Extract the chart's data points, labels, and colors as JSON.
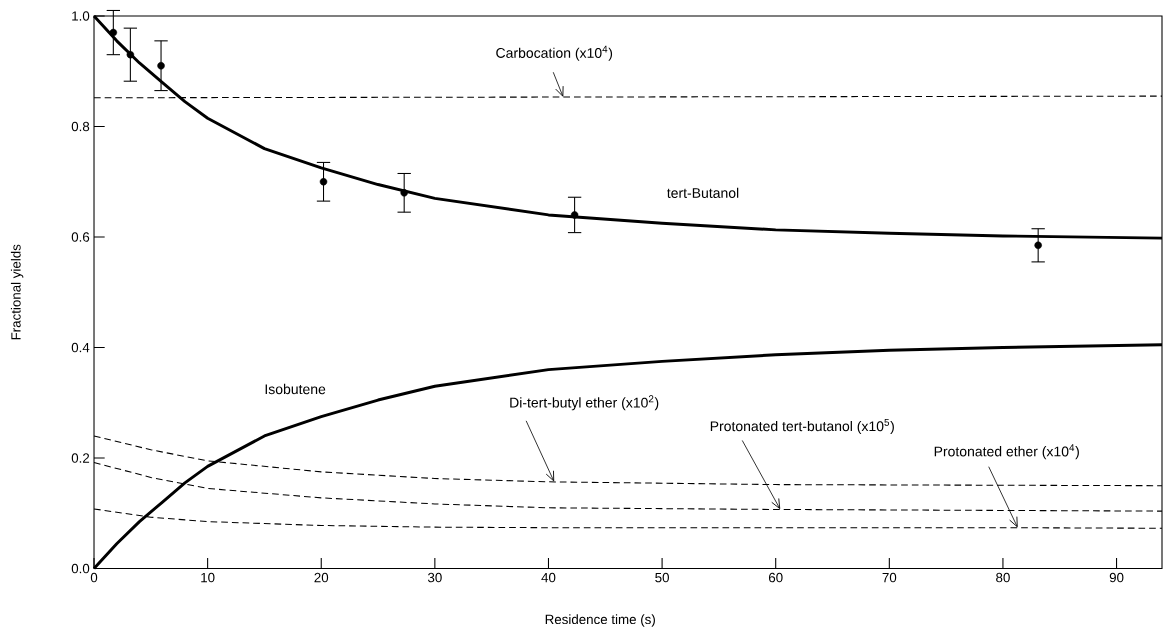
{
  "chart_data": {
    "type": "line",
    "xlabel": "Residence time (s)",
    "ylabel": "Fractional yields",
    "xlim": [
      0,
      94
    ],
    "ylim": [
      0,
      1
    ],
    "xticks": [
      0,
      10,
      20,
      30,
      40,
      50,
      60,
      70,
      80,
      90
    ],
    "yticks": [
      {
        "value": 0,
        "label": "0.0"
      },
      0.2,
      0.4,
      0.6,
      0.8,
      {
        "value": 1,
        "label": "1.0"
      }
    ],
    "series": [
      {
        "name": "tert-Butanol",
        "line_style": "solid",
        "color": "#000000",
        "x": [
          0,
          2,
          4,
          6,
          8,
          10,
          15,
          20,
          25,
          30,
          40,
          50,
          60,
          70,
          80,
          94
        ],
        "values": [
          1.0,
          0.955,
          0.915,
          0.88,
          0.845,
          0.815,
          0.76,
          0.725,
          0.695,
          0.67,
          0.64,
          0.625,
          0.613,
          0.607,
          0.602,
          0.598
        ]
      },
      {
        "name": "Isobutene",
        "line_style": "solid",
        "color": "#000000",
        "x": [
          0,
          2,
          4,
          6,
          8,
          10,
          15,
          20,
          25,
          30,
          40,
          50,
          60,
          70,
          80,
          94
        ],
        "values": [
          0,
          0.045,
          0.085,
          0.12,
          0.155,
          0.185,
          0.24,
          0.275,
          0.305,
          0.33,
          0.36,
          0.375,
          0.387,
          0.395,
          0.4,
          0.405
        ]
      },
      {
        "line_style": "dashed",
        "color": "#000000",
        "x": [
          0,
          94
        ],
        "values": [
          0.852,
          0.855
        ]
      },
      {
        "line_style": "dashed",
        "color": "#000000",
        "x": [
          0,
          5,
          10,
          20,
          30,
          40,
          60,
          94
        ],
        "values": [
          0.24,
          0.215,
          0.195,
          0.175,
          0.163,
          0.157,
          0.152,
          0.15
        ]
      },
      {
        "line_style": "dashed",
        "color": "#000000",
        "x": [
          0,
          5,
          10,
          20,
          30,
          40,
          60,
          94
        ],
        "values": [
          0.192,
          0.165,
          0.145,
          0.128,
          0.117,
          0.11,
          0.107,
          0.104
        ]
      },
      {
        "line_style": "dashed",
        "color": "#000000",
        "x": [
          0,
          5,
          10,
          20,
          30,
          40,
          60,
          80,
          94
        ],
        "values": [
          0.108,
          0.093,
          0.085,
          0.078,
          0.075,
          0.074,
          0.074,
          0.074,
          0.073
        ]
      },
      {
        "type": "scatter",
        "marker": "circle",
        "color": "#000000",
        "x": [
          1.7,
          3.2,
          5.9,
          20.2,
          27.3,
          42.3,
          83.1
        ],
        "values": [
          0.97,
          0.93,
          0.91,
          0.7,
          0.68,
          0.64,
          0.585
        ],
        "errors": [
          0.04,
          0.048,
          0.045,
          0.035,
          0.035,
          0.032,
          0.03
        ]
      }
    ],
    "annotations": [
      {
        "text": "Carbocation (x10$^{4}$)",
        "x": 41.3,
        "y": 0.853
      },
      {
        "text": "Di-tert-butyl ether (x10$^{2}$)",
        "x": 40.5,
        "y": 0.157
      },
      {
        "text": "Protonated tert-butanol (x10$^{5}$)",
        "x": 60.4,
        "y": 0.107
      },
      {
        "text": "Protonated ether (x10$^{4}$)",
        "x": 81.3,
        "y": 0.074
      }
    ]
  }
}
